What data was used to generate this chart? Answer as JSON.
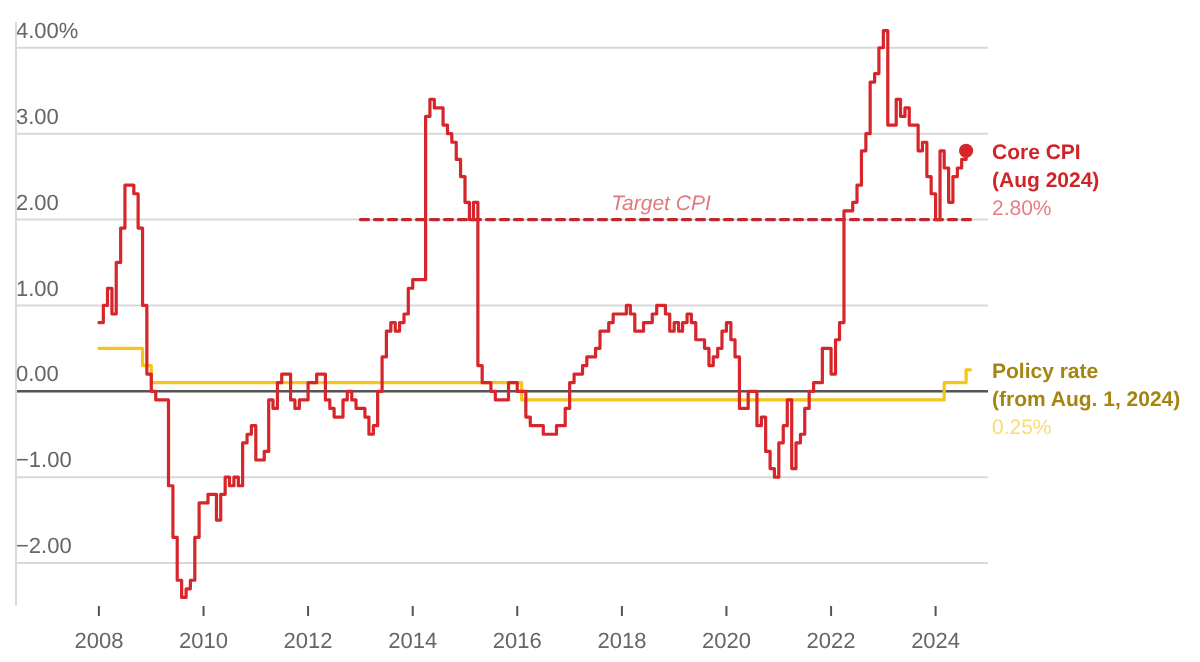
{
  "chart_data": {
    "type": "step",
    "legend": false,
    "grid": "y",
    "xlim": [
      "2006-06",
      "2025-01"
    ],
    "ylim": [
      -2.5,
      4.3
    ],
    "xticks": [
      "2008",
      "2010",
      "2012",
      "2014",
      "2016",
      "2018",
      "2020",
      "2022",
      "2024"
    ],
    "yticks": [
      {
        "value": 4,
        "label": "4.00%"
      },
      {
        "value": 3,
        "label": "3.00"
      },
      {
        "value": 2,
        "label": "2.00"
      },
      {
        "value": 1,
        "label": "1.00"
      },
      {
        "value": 0,
        "label": "0.00"
      },
      {
        "value": -1,
        "label": "−1.00"
      },
      {
        "value": -2,
        "label": "−2.00"
      }
    ],
    "ref_lines": [
      {
        "axis": "y",
        "value": 0,
        "color": "#555555"
      }
    ],
    "series": [
      {
        "name": "Policy rate (from Aug. 1, 2024)",
        "color": "#f5c518",
        "type": "step",
        "x": [
          "2008-01",
          "2008-11",
          "2009-01",
          "2016-02",
          "2024-03",
          "2024-08",
          "2024-09"
        ],
        "values": [
          0.5,
          0.3,
          0.1,
          -0.1,
          0.1,
          0.25,
          0.25
        ]
      },
      {
        "color": "#c0282d",
        "type": "line",
        "line_style": "dashed",
        "x": [
          "2013-01",
          "2024-09"
        ],
        "values": [
          2,
          2
        ]
      },
      {
        "name": "Core CPI (Aug 2024)",
        "color": "#d7262b",
        "type": "step",
        "x": [
          "2008-01",
          "2008-02",
          "2008-03",
          "2008-04",
          "2008-05",
          "2008-06",
          "2008-07",
          "2008-08",
          "2008-09",
          "2008-10",
          "2008-11",
          "2008-12",
          "2009-01",
          "2009-02",
          "2009-03",
          "2009-04",
          "2009-05",
          "2009-06",
          "2009-07",
          "2009-08",
          "2009-09",
          "2009-10",
          "2009-11",
          "2009-12",
          "2010-01",
          "2010-02",
          "2010-03",
          "2010-04",
          "2010-05",
          "2010-06",
          "2010-07",
          "2010-08",
          "2010-09",
          "2010-10",
          "2010-11",
          "2010-12",
          "2011-01",
          "2011-02",
          "2011-03",
          "2011-04",
          "2011-05",
          "2011-06",
          "2011-07",
          "2011-08",
          "2011-09",
          "2011-10",
          "2011-11",
          "2011-12",
          "2012-01",
          "2012-02",
          "2012-03",
          "2012-04",
          "2012-05",
          "2012-06",
          "2012-07",
          "2012-08",
          "2012-09",
          "2012-10",
          "2012-11",
          "2012-12",
          "2013-01",
          "2013-02",
          "2013-03",
          "2013-04",
          "2013-05",
          "2013-06",
          "2013-07",
          "2013-08",
          "2013-09",
          "2013-10",
          "2013-11",
          "2013-12",
          "2014-01",
          "2014-02",
          "2014-03",
          "2014-04",
          "2014-05",
          "2014-06",
          "2014-07",
          "2014-08",
          "2014-09",
          "2014-10",
          "2014-11",
          "2014-12",
          "2015-01",
          "2015-02",
          "2015-03",
          "2015-04",
          "2015-05",
          "2015-06",
          "2015-07",
          "2015-08",
          "2015-09",
          "2015-10",
          "2015-11",
          "2015-12",
          "2016-01",
          "2016-02",
          "2016-03",
          "2016-04",
          "2016-05",
          "2016-06",
          "2016-07",
          "2016-08",
          "2016-09",
          "2016-10",
          "2016-11",
          "2016-12",
          "2017-01",
          "2017-02",
          "2017-03",
          "2017-04",
          "2017-05",
          "2017-06",
          "2017-07",
          "2017-08",
          "2017-09",
          "2017-10",
          "2017-11",
          "2017-12",
          "2018-01",
          "2018-02",
          "2018-03",
          "2018-04",
          "2018-05",
          "2018-06",
          "2018-07",
          "2018-08",
          "2018-09",
          "2018-10",
          "2018-11",
          "2018-12",
          "2019-01",
          "2019-02",
          "2019-03",
          "2019-04",
          "2019-05",
          "2019-06",
          "2019-07",
          "2019-08",
          "2019-09",
          "2019-10",
          "2019-11",
          "2019-12",
          "2020-01",
          "2020-02",
          "2020-03",
          "2020-04",
          "2020-05",
          "2020-06",
          "2020-07",
          "2020-08",
          "2020-09",
          "2020-10",
          "2020-11",
          "2020-12",
          "2021-01",
          "2021-02",
          "2021-03",
          "2021-04",
          "2021-05",
          "2021-06",
          "2021-07",
          "2021-08",
          "2021-09",
          "2021-10",
          "2021-11",
          "2021-12",
          "2022-01",
          "2022-02",
          "2022-03",
          "2022-04",
          "2022-05",
          "2022-06",
          "2022-07",
          "2022-08",
          "2022-09",
          "2022-10",
          "2022-11",
          "2022-12",
          "2023-01",
          "2023-02",
          "2023-03",
          "2023-04",
          "2023-05",
          "2023-06",
          "2023-07",
          "2023-08",
          "2023-09",
          "2023-10",
          "2023-11",
          "2023-12",
          "2024-01",
          "2024-02",
          "2024-03",
          "2024-04",
          "2024-05",
          "2024-06",
          "2024-07",
          "2024-08"
        ],
        "values": [
          0.8,
          1.0,
          1.2,
          0.9,
          1.5,
          1.9,
          2.4,
          2.4,
          2.3,
          1.9,
          1.0,
          0.2,
          0.0,
          -0.1,
          -0.1,
          -0.1,
          -1.1,
          -1.7,
          -2.2,
          -2.4,
          -2.3,
          -2.2,
          -1.7,
          -1.3,
          -1.3,
          -1.2,
          -1.2,
          -1.5,
          -1.2,
          -1.0,
          -1.1,
          -1.0,
          -1.1,
          -0.6,
          -0.5,
          -0.4,
          -0.8,
          -0.8,
          -0.7,
          -0.1,
          -0.2,
          0.1,
          0.2,
          0.2,
          -0.1,
          -0.2,
          -0.1,
          -0.1,
          0.1,
          0.1,
          0.2,
          0.2,
          -0.1,
          -0.2,
          -0.3,
          -0.3,
          -0.1,
          0.0,
          -0.1,
          -0.2,
          -0.2,
          -0.3,
          -0.5,
          -0.4,
          0.0,
          0.4,
          0.7,
          0.8,
          0.7,
          0.8,
          0.9,
          1.2,
          1.3,
          1.3,
          1.3,
          3.2,
          3.4,
          3.3,
          3.3,
          3.1,
          3.0,
          2.9,
          2.7,
          2.5,
          2.2,
          2.0,
          2.2,
          0.3,
          0.1,
          0.1,
          0.0,
          -0.1,
          -0.1,
          -0.1,
          0.1,
          0.1,
          0.0,
          0.0,
          -0.3,
          -0.4,
          -0.4,
          -0.4,
          -0.5,
          -0.5,
          -0.5,
          -0.4,
          -0.4,
          -0.2,
          0.1,
          0.2,
          0.2,
          0.3,
          0.4,
          0.4,
          0.5,
          0.7,
          0.7,
          0.8,
          0.9,
          0.9,
          0.9,
          1.0,
          0.9,
          0.7,
          0.7,
          0.8,
          0.8,
          0.9,
          1.0,
          1.0,
          0.9,
          0.7,
          0.8,
          0.7,
          0.8,
          0.9,
          0.8,
          0.6,
          0.6,
          0.5,
          0.3,
          0.4,
          0.5,
          0.7,
          0.8,
          0.6,
          0.4,
          -0.2,
          -0.2,
          0.0,
          0.0,
          -0.4,
          -0.3,
          -0.7,
          -0.9,
          -1.0,
          -0.6,
          -0.4,
          -0.1,
          -0.9,
          -0.6,
          -0.5,
          -0.2,
          0.0,
          0.1,
          0.1,
          0.5,
          0.5,
          0.2,
          0.6,
          0.8,
          2.1,
          2.1,
          2.2,
          2.4,
          2.8,
          3.0,
          3.6,
          3.7,
          4.0,
          4.2,
          3.1,
          3.1,
          3.4,
          3.2,
          3.3,
          3.1,
          3.1,
          2.8,
          2.9,
          2.5,
          2.3,
          2.0,
          2.8,
          2.6,
          2.2,
          2.5,
          2.6,
          2.7,
          2.8
        ]
      },
      {
        "color": "#d7262b",
        "type": "scatter",
        "marker": "circle",
        "x": [
          "2024-08"
        ],
        "values": [
          2.8
        ]
      }
    ],
    "annotations": [
      {
        "text": "Target CPI",
        "x": "2018-10",
        "y": 2
      },
      {
        "text": "2.80%",
        "x": "2024-08",
        "y": 2.8
      },
      {
        "text": "0.25%",
        "x": "2024-08",
        "y": 0.25
      }
    ]
  }
}
